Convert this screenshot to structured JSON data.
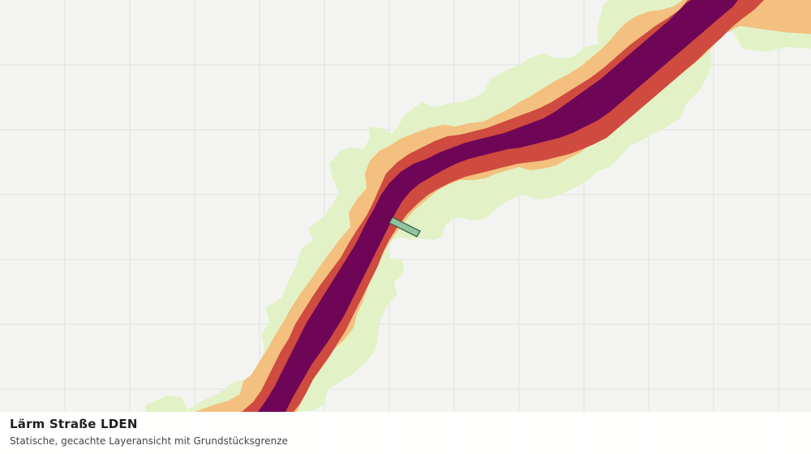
{
  "map": {
    "layer_name": "Lärm Straße LDEN",
    "caption": "Statische, gecachte Layeransicht mit Grundstücksgrenze",
    "colors": {
      "background": "#f3f4f1",
      "grid": "#dfe2de",
      "zone_light": "#e2f2c6",
      "zone_orange": "#f3c07f",
      "zone_red": "#cf4a3f",
      "zone_purple": "#6e0557",
      "parcel_fill": "#93c29e",
      "parcel_stroke": "#2d5538"
    }
  }
}
